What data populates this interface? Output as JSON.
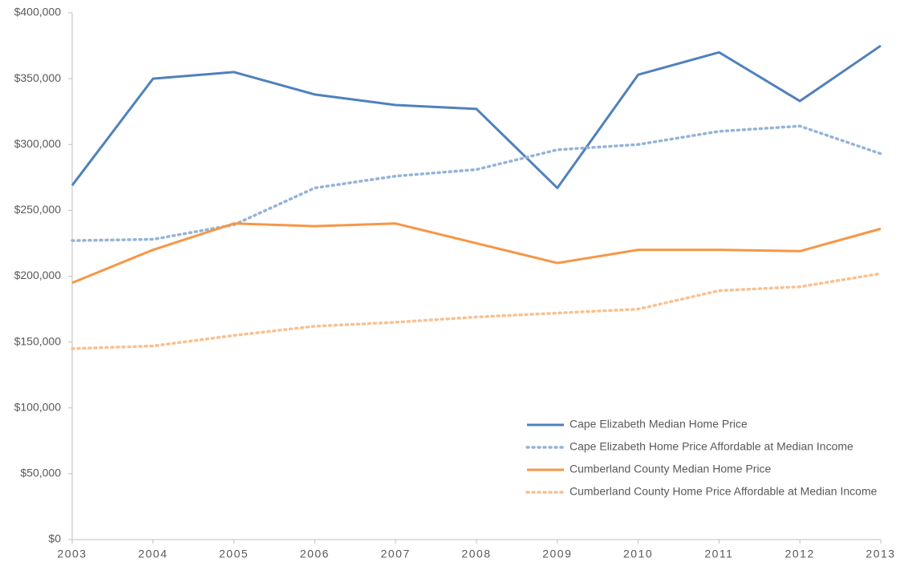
{
  "chart_data": {
    "type": "line",
    "categories": [
      "2003",
      "2004",
      "2005",
      "2006",
      "2007",
      "2008",
      "2009",
      "2010",
      "2011",
      "2012",
      "2013"
    ],
    "ylim": [
      0,
      400000
    ],
    "yticks": [
      {
        "value": 0,
        "label": "$0"
      },
      {
        "value": 50000,
        "label": "$50,000"
      },
      {
        "value": 100000,
        "label": "$100,000"
      },
      {
        "value": 150000,
        "label": "$150,000"
      },
      {
        "value": 200000,
        "label": "$200,000"
      },
      {
        "value": 250000,
        "label": "$250,000"
      },
      {
        "value": 300000,
        "label": "$300,000"
      },
      {
        "value": 350000,
        "label": "$350,000"
      },
      {
        "value": 400000,
        "label": "$400,000"
      }
    ],
    "grid": false,
    "legend": "lower right",
    "series": [
      {
        "name": "Cape Elizabeth Median Home Price",
        "color": "#4f81bd",
        "linestyle": "solid",
        "values": [
          269000,
          350000,
          355000,
          338000,
          330000,
          327000,
          267000,
          353000,
          370000,
          333000,
          375000
        ]
      },
      {
        "name": "Cape Elizabeth Home Price Affordable at Median Income",
        "color": "#95b3d7",
        "linestyle": "dotted",
        "values": [
          227000,
          228000,
          239000,
          267000,
          276000,
          281000,
          296000,
          300000,
          310000,
          314000,
          293000
        ]
      },
      {
        "name": "Cumberland County Median Home Price",
        "color": "#f79646",
        "linestyle": "solid",
        "values": [
          195000,
          220000,
          240000,
          238000,
          240000,
          225000,
          210000,
          220000,
          220000,
          219000,
          236000
        ]
      },
      {
        "name": "Cumberland County Home Price Affordable at Median Income",
        "color": "#fac090",
        "linestyle": "dotted",
        "values": [
          145000,
          147000,
          155000,
          162000,
          165000,
          169000,
          172000,
          175000,
          189000,
          192000,
          202000
        ]
      }
    ]
  }
}
